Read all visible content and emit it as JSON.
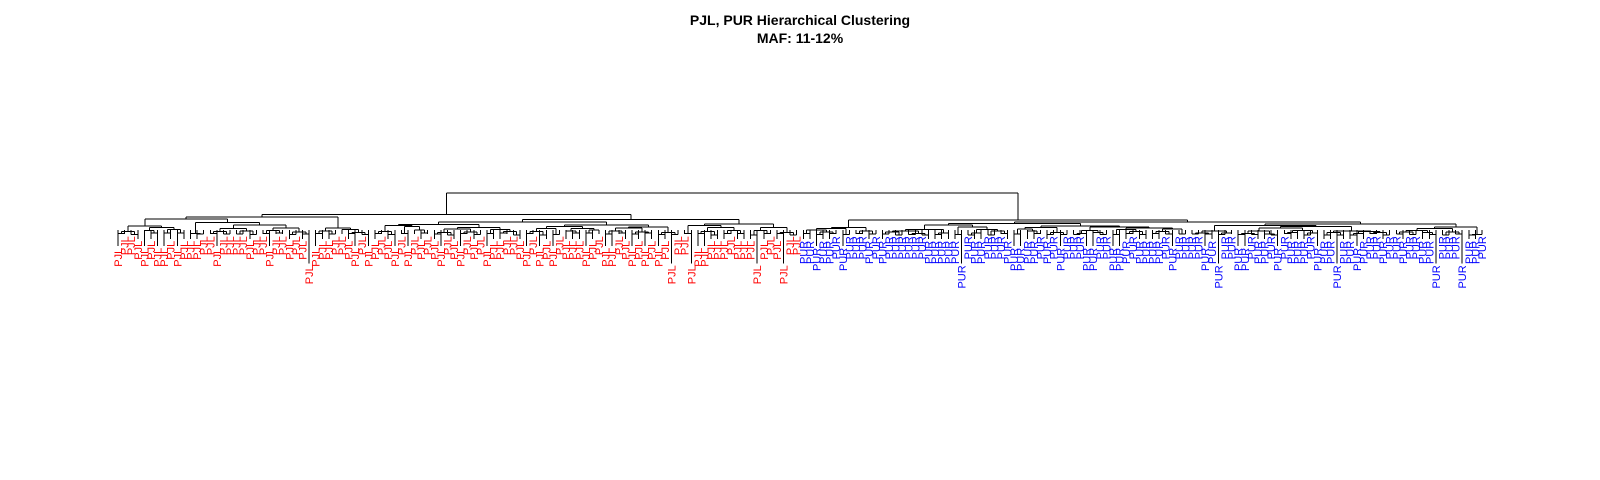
{
  "title": {
    "line1": "PJL, PUR Hierarchical Clustering",
    "line2": "MAF: 11-12%"
  },
  "chart_data": {
    "type": "dendrogram",
    "groups": [
      {
        "label": "PJL",
        "color": "#ff0000",
        "leaf_count": 104
      },
      {
        "label": "PUR",
        "color": "#0000ff",
        "leaf_count": 104
      }
    ],
    "axes_shown": false,
    "legend": "none"
  }
}
